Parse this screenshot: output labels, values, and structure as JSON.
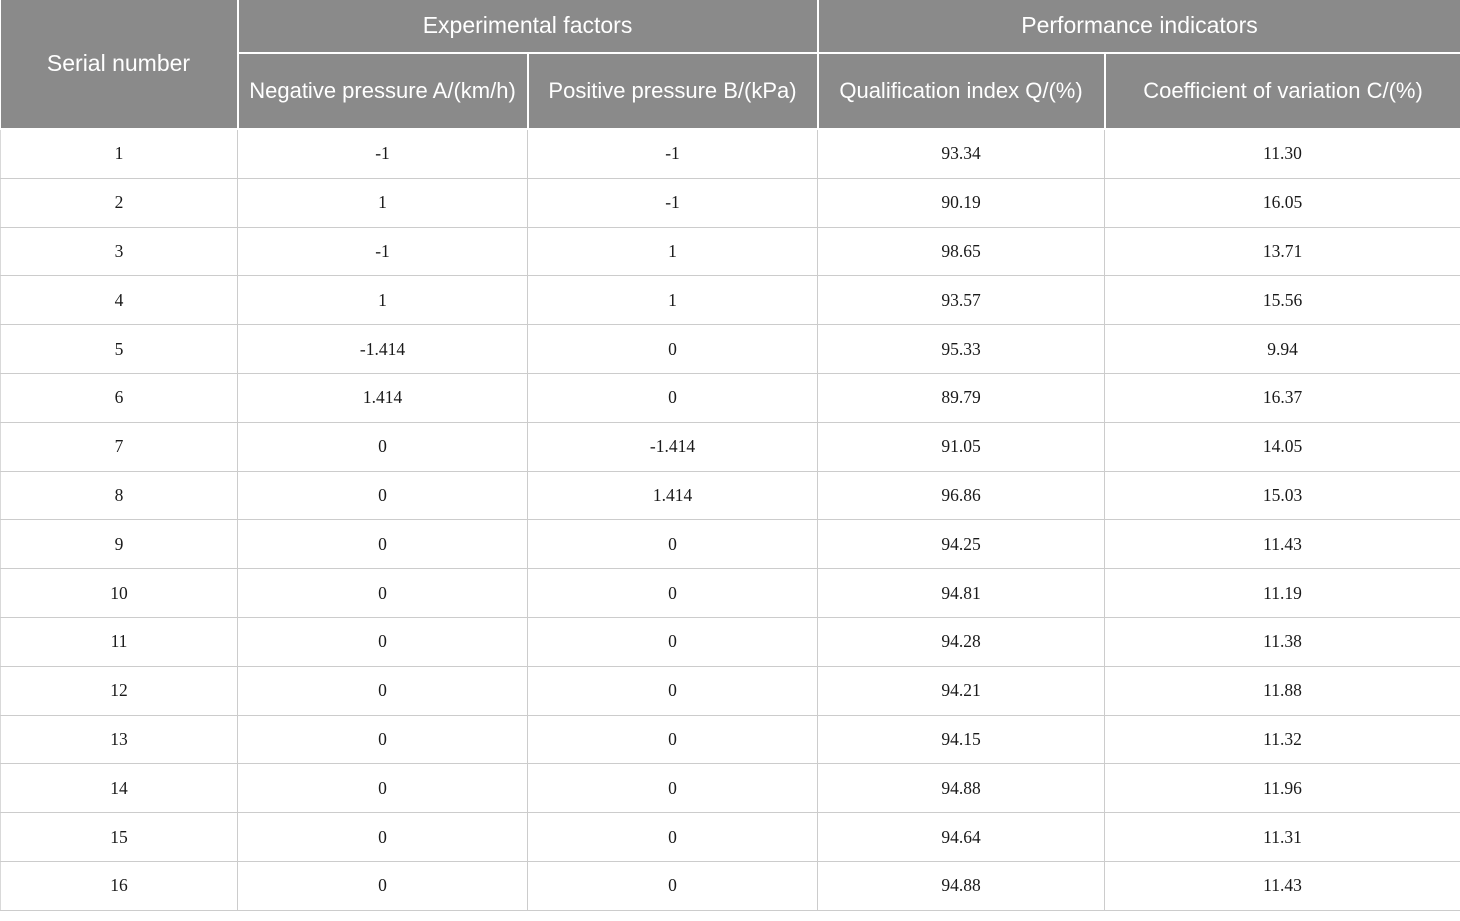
{
  "table": {
    "header": {
      "serial": "Serial number",
      "group_experimental": "Experimental factors",
      "group_performance": "Performance indicators",
      "col_negative_pressure": "Negative pressure A/(km/h)",
      "col_positive_pressure": "Positive pressure B/(kPa)",
      "col_qualification_index": "Qualification index Q/(%)",
      "col_coefficient_variation": "Coefficient of variation C/(%)"
    },
    "rows": [
      [
        "1",
        "-1",
        "-1",
        "93.34",
        "11.30"
      ],
      [
        "2",
        "1",
        "-1",
        "90.19",
        "16.05"
      ],
      [
        "3",
        "-1",
        "1",
        "98.65",
        "13.71"
      ],
      [
        "4",
        "1",
        "1",
        "93.57",
        "15.56"
      ],
      [
        "5",
        "-1.414",
        "0",
        "95.33",
        "9.94"
      ],
      [
        "6",
        "1.414",
        "0",
        "89.79",
        "16.37"
      ],
      [
        "7",
        "0",
        "-1.414",
        "91.05",
        "14.05"
      ],
      [
        "8",
        "0",
        "1.414",
        "96.86",
        "15.03"
      ],
      [
        "9",
        "0",
        "0",
        "94.25",
        "11.43"
      ],
      [
        "10",
        "0",
        "0",
        "94.81",
        "11.19"
      ],
      [
        "11",
        "0",
        "0",
        "94.28",
        "11.38"
      ],
      [
        "12",
        "0",
        "0",
        "94.21",
        "11.88"
      ],
      [
        "13",
        "0",
        "0",
        "94.15",
        "11.32"
      ],
      [
        "14",
        "0",
        "0",
        "94.88",
        "11.96"
      ],
      [
        "15",
        "0",
        "0",
        "94.64",
        "11.31"
      ],
      [
        "16",
        "0",
        "0",
        "94.88",
        "11.43"
      ]
    ],
    "colors": {
      "header_background": "#8a8a8a",
      "header_text": "#ffffff",
      "body_border": "#cccccc",
      "body_text": "#1a1a1a"
    }
  }
}
